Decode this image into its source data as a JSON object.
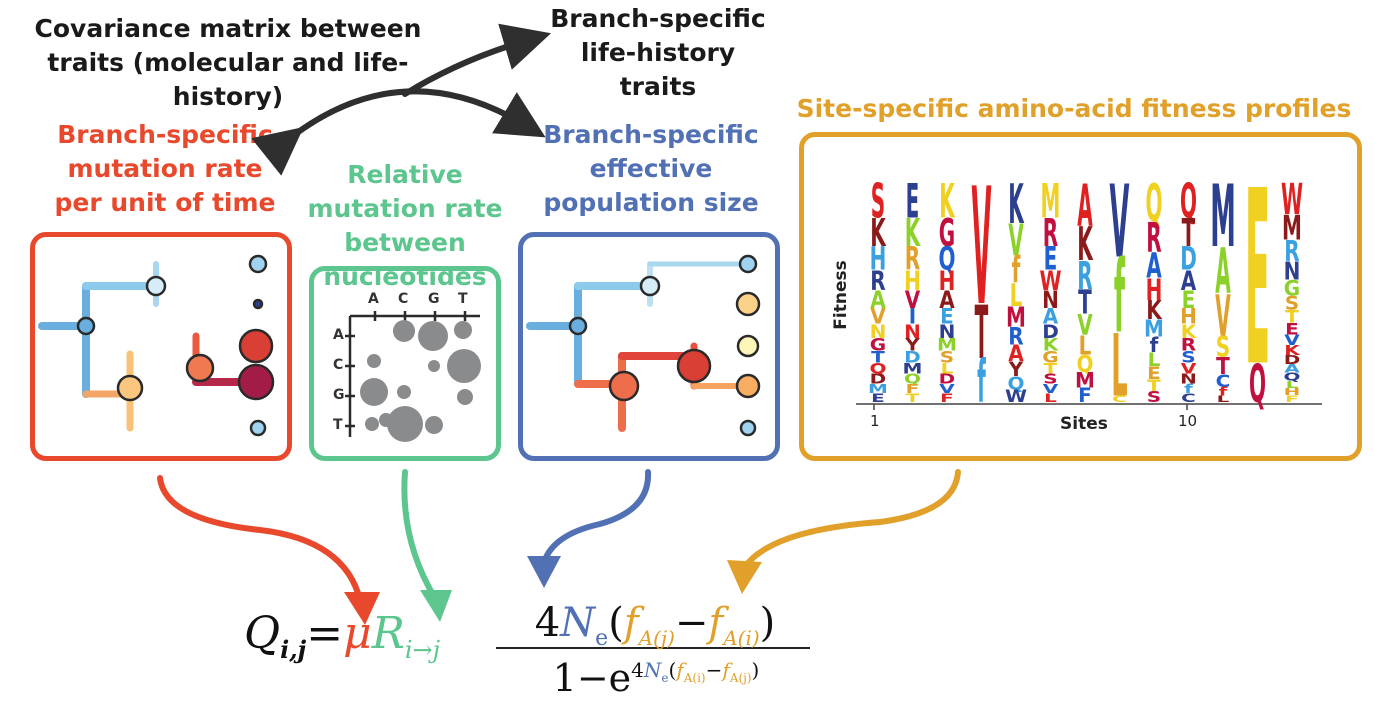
{
  "colors": {
    "mutation": "#e8492c",
    "nucleotide": "#5cc68e",
    "popsize": "#5270b4",
    "fitness": "#e0a02a",
    "dark": "#2f2f2f"
  },
  "labels": {
    "covariance": "Covariance matrix between traits (molecular and life-history)",
    "life_history": "Branch-specific life-history traits",
    "mutation_rate": "Branch-specific mutation rate per unit of time",
    "relative_mutation": "Relative mutation rate between nucleotides",
    "pop_size": "Branch-specific effective population size",
    "fitness_profiles": "Site-specific amino-acid fitness profiles"
  },
  "nucleotides": [
    "A",
    "C",
    "G",
    "T"
  ],
  "logo": {
    "ylabel": "Fitness",
    "xlabel": "Sites",
    "tick_1": "1",
    "tick_10": "10"
  },
  "equation": {
    "Q": "Q",
    "ij": "i,j",
    "eq": "=",
    "mu": "μ",
    "R": "R",
    "i": "i",
    "arrow": "→",
    "j": "j",
    "four": "4",
    "N": "N",
    "e": "e",
    "fAj": "f",
    "fAi": "f",
    "subAj": "A(j)",
    "subAi": "A(i)",
    "minus": "−",
    "one": "1",
    "exp_e": "e",
    "lparen": "(",
    "rparen": ")"
  }
}
